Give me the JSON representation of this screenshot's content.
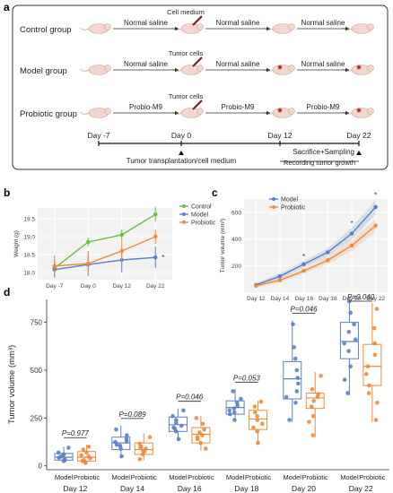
{
  "panel_labels": {
    "a": "a",
    "b": "b",
    "c": "c",
    "d": "d"
  },
  "schematic": {
    "rows": [
      {
        "group": "Control  group",
        "step1": "Normal saline",
        "mid_label": "Cell medium",
        "step2": "Normal saline",
        "step3": "Normal saline"
      },
      {
        "group": "Model  group",
        "step1": "Normal saline",
        "mid_label": "Tumor cells",
        "step2": "Normal saline",
        "step3": "Normal saline"
      },
      {
        "group": "Probiotic  group",
        "step1": "Probio-M9",
        "mid_label": "Tumor cells",
        "step2": "Probio-M9",
        "step3": "Probio-M9"
      }
    ],
    "timeline": [
      "Day -7",
      "Day 0",
      "Day 12",
      "Day 22"
    ],
    "notes": {
      "transplant": "Tumor transplantation/cell medium",
      "sacrifice": "Sacrifice+Sampling",
      "recording": "Recording tumor growth"
    },
    "colors": {
      "mouse": "#f3d7cf",
      "tumor": "#c0392b",
      "syringe": "#7a1e1e"
    }
  },
  "chart_data": [
    {
      "panel": "b",
      "type": "line",
      "categories": [
        "Day -7",
        "Day 0",
        "Day 12",
        "Day 22"
      ],
      "ylabel": "Weight (g)",
      "yticks": [
        18.0,
        18.5,
        19.0,
        19.5
      ],
      "ylim": [
        17.8,
        19.8
      ],
      "series": [
        {
          "name": "Control",
          "color": "#6abf3a",
          "values": [
            18.12,
            18.85,
            19.05,
            19.62
          ],
          "err": [
            0.25,
            0.12,
            0.15,
            0.2
          ]
        },
        {
          "name": "Model",
          "color": "#5b7fc4",
          "values": [
            18.08,
            18.22,
            18.35,
            18.42
          ],
          "err": [
            0.22,
            0.3,
            0.35,
            0.3
          ]
        },
        {
          "name": "Probiotic",
          "color": "#f08a3a",
          "values": [
            18.18,
            18.25,
            18.6,
            19.0
          ],
          "err": [
            0.3,
            0.35,
            0.3,
            0.2
          ]
        }
      ],
      "annotation": "*"
    },
    {
      "panel": "c",
      "type": "line",
      "categories": [
        "Day 12",
        "Day 14",
        "Day 16",
        "Day 18",
        "Day 20",
        "Day 22"
      ],
      "ylabel": "Tumor volume (mm³)",
      "yticks": [
        200,
        400,
        600
      ],
      "ylim": [
        0,
        700
      ],
      "series": [
        {
          "name": "Model",
          "color": "#5b7fc4",
          "values": [
            55,
            120,
            210,
            300,
            440,
            640
          ],
          "err": [
            15,
            20,
            25,
            30,
            45,
            55
          ]
        },
        {
          "name": "Probiotic",
          "color": "#f08a3a",
          "values": [
            48,
            90,
            160,
            240,
            350,
            500
          ],
          "err": [
            12,
            18,
            20,
            28,
            40,
            50
          ]
        }
      ],
      "annotations": [
        "*",
        "*",
        "*"
      ]
    },
    {
      "panel": "d",
      "type": "box",
      "ylabel": "Tumor volume (mm³)",
      "yticks": [
        0,
        250,
        500,
        750
      ],
      "ylim": [
        -20,
        870
      ],
      "groups": [
        {
          "day": "Day 12",
          "p": "P=0.977",
          "model": {
            "q1": 30,
            "med": 45,
            "q3": 65,
            "lo": 20,
            "hi": 100,
            "pts": [
              25,
              35,
              42,
              48,
              55,
              60,
              70,
              95,
              30
            ]
          },
          "probiotic": {
            "q1": 25,
            "med": 45,
            "q3": 75,
            "lo": 10,
            "hi": 110,
            "pts": [
              15,
              30,
              40,
              50,
              55,
              70,
              85,
              100,
              25
            ]
          }
        },
        {
          "day": "Day 14",
          "p": "P=0.089",
          "model": {
            "q1": 85,
            "med": 120,
            "q3": 150,
            "lo": 40,
            "hi": 210,
            "pts": [
              50,
              90,
              110,
              125,
              140,
              160,
              190,
              105,
              130
            ]
          },
          "probiotic": {
            "q1": 60,
            "med": 85,
            "q3": 120,
            "lo": 30,
            "hi": 170,
            "pts": [
              35,
              60,
              75,
              90,
              100,
              115,
              150,
              80,
              95
            ]
          }
        },
        {
          "day": "Day 16",
          "p": "P=0.046",
          "model": {
            "q1": 180,
            "med": 215,
            "q3": 255,
            "lo": 130,
            "hi": 300,
            "pts": [
              140,
              180,
              200,
              210,
              225,
              240,
              260,
              290,
              195
            ]
          },
          "probiotic": {
            "q1": 120,
            "med": 165,
            "q3": 200,
            "lo": 80,
            "hi": 260,
            "pts": [
              90,
              120,
              140,
              160,
              175,
              190,
              220,
              250,
              150
            ]
          }
        },
        {
          "day": "Day 18",
          "p": "P=0.053",
          "model": {
            "q1": 270,
            "med": 305,
            "q3": 340,
            "lo": 230,
            "hi": 400,
            "pts": [
              240,
              270,
              290,
              300,
              315,
              330,
              350,
              390,
              280
            ]
          },
          "probiotic": {
            "q1": 190,
            "med": 245,
            "q3": 290,
            "lo": 110,
            "hi": 340,
            "pts": [
              120,
              180,
              220,
              240,
              260,
              280,
              310,
              335,
              200
            ]
          }
        },
        {
          "day": "Day 20",
          "p": "P=0.046",
          "model": {
            "q1": 350,
            "med": 455,
            "q3": 545,
            "lo": 230,
            "hi": 760,
            "pts": [
              240,
              330,
              390,
              430,
              460,
              500,
              560,
              620,
              740,
              360
            ]
          },
          "probiotic": {
            "q1": 300,
            "med": 355,
            "q3": 380,
            "lo": 150,
            "hi": 490,
            "pts": [
              160,
              260,
              310,
              340,
              360,
              375,
              400,
              470,
              230
            ]
          }
        },
        {
          "day": "Day 22",
          "p": "P=0.040",
          "model": {
            "q1": 560,
            "med": 650,
            "q3": 750,
            "lo": 370,
            "hi": 870,
            "pts": [
              380,
              520,
              600,
              640,
              660,
              700,
              740,
              800,
              860,
              450
            ]
          },
          "probiotic": {
            "q1": 420,
            "med": 520,
            "q3": 635,
            "lo": 230,
            "hi": 850,
            "pts": [
              240,
              330,
              420,
              480,
              520,
              580,
              640,
              720,
              820,
              380
            ]
          }
        }
      ],
      "group_labels": [
        "Model",
        "Probiotic"
      ],
      "colors": {
        "model": "#5b7fc4",
        "probiotic": "#f08a3a"
      }
    }
  ]
}
